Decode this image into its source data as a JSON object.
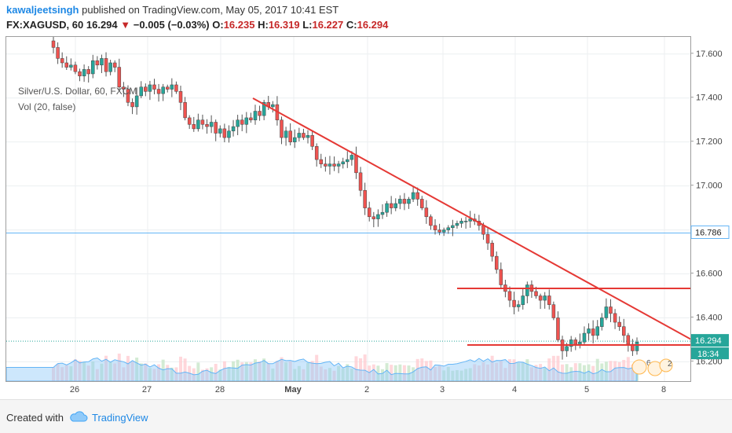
{
  "header": {
    "username": "kawaljeetsingh",
    "published_text": "published on TradingView.com, May 05, 2017 10:41 EST",
    "symbol_line": "FX:XAGUSD, 60",
    "last_price": "16.294",
    "change_arrow": "▼",
    "change": "−0.005 (−0.03%)",
    "open_label": "O:",
    "open": "16.235",
    "high_label": "H:",
    "high": "16.319",
    "low_label": "L:",
    "low": "16.227",
    "close_label": "C:",
    "close": "16.294"
  },
  "legend": {
    "series": "Silver/U.S. Dollar, 60, FXCM",
    "volume": "Vol (20, false)"
  },
  "footer": {
    "created_with": "Created with",
    "brand": "TradingView"
  },
  "colors": {
    "up": "#26a69a",
    "down": "#ef5350",
    "trendline": "#e53935",
    "hline": "#64b5f6",
    "volume_ma": "#90caf9"
  },
  "chart_data": {
    "type": "candlestick",
    "symbol": "FX:XAGUSD",
    "interval": "60",
    "y_ticks": [
      "17.600",
      "17.400",
      "17.200",
      "17.000",
      "16.800",
      "16.600",
      "16.400",
      "16.200"
    ],
    "x_ticks": [
      "26",
      "27",
      "28",
      "May",
      "2",
      "3",
      "4",
      "5",
      "8"
    ],
    "ylim": [
      16.13,
      17.66
    ],
    "horizontal_line": {
      "value": "16.786"
    },
    "last_price_label": "16.294",
    "countdown_label": "18:34",
    "event_badges": [
      "6",
      "2"
    ],
    "closes": [
      17.63,
      17.58,
      17.56,
      17.54,
      17.55,
      17.52,
      17.5,
      17.53,
      17.51,
      17.57,
      17.55,
      17.58,
      17.52,
      17.56,
      17.54,
      17.45,
      17.44,
      17.38,
      17.36,
      17.41,
      17.45,
      17.43,
      17.46,
      17.44,
      17.42,
      17.45,
      17.44,
      17.46,
      17.43,
      17.38,
      17.31,
      17.28,
      17.26,
      17.3,
      17.28,
      17.27,
      17.29,
      17.24,
      17.26,
      17.22,
      17.25,
      17.27,
      17.3,
      17.28,
      17.31,
      17.3,
      17.34,
      17.32,
      17.38,
      17.36,
      17.37,
      17.3,
      17.22,
      17.25,
      17.2,
      17.22,
      17.24,
      17.22,
      17.23,
      17.18,
      17.12,
      17.1,
      17.09,
      17.1,
      17.09,
      17.1,
      17.11,
      17.12,
      17.14,
      17.06,
      16.98,
      16.9,
      16.86,
      16.85,
      16.87,
      16.88,
      16.92,
      16.9,
      16.92,
      16.94,
      16.92,
      16.94,
      16.97,
      16.94,
      16.9,
      16.86,
      16.82,
      16.8,
      16.79,
      16.8,
      16.81,
      16.82,
      16.83,
      16.84,
      16.84,
      16.85,
      16.84,
      16.82,
      16.78,
      16.74,
      16.68,
      16.62,
      16.55,
      16.52,
      16.48,
      16.45,
      16.46,
      16.5,
      16.55,
      16.52,
      16.5,
      16.48,
      16.5,
      16.46,
      16.4,
      16.3,
      16.25,
      16.27,
      16.3,
      16.28,
      16.29,
      16.33,
      16.35,
      16.32,
      16.36,
      16.4,
      16.45,
      16.42,
      16.38,
      16.36,
      16.32,
      16.28,
      16.25,
      16.29
    ]
  }
}
